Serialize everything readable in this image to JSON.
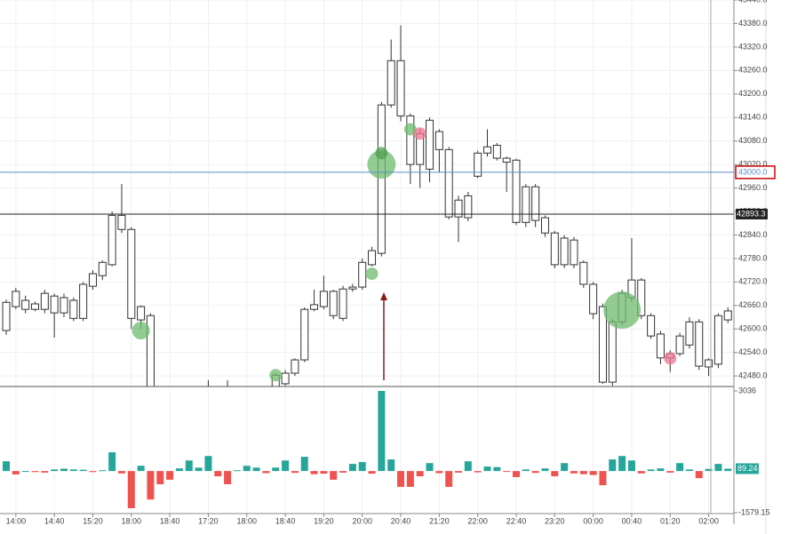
{
  "chart_data": [
    {
      "type": "candlestick",
      "open": [
        42596,
        42657,
        42673,
        42664,
        42650,
        42684,
        42641,
        42673,
        42627,
        42709,
        42736,
        42764,
        42890,
        42854,
        42623,
        42634,
        42419,
        42370,
        42390,
        42380,
        42350,
        42370,
        42400,
        42390,
        42410,
        42395,
        42400,
        42415,
        42442,
        42487,
        42487,
        42521,
        42650,
        42657,
        42696,
        42627,
        42702,
        42707,
        42764,
        42793,
        43172,
        43285,
        43144,
        43020,
        43133,
        43058,
        43058,
        42886,
        42884,
        42990,
        43049,
        43069,
        43036,
        43031,
        42872,
        42963,
        42884,
        42845,
        42764,
        42827,
        42770,
        42714,
        42657,
        42464,
        42618,
        42680,
        42725,
        42634,
        42587,
        42526,
        42537,
        42559,
        42618,
        42503,
        42510,
        42623
      ],
      "high": [
        42675,
        42705,
        42685,
        42670,
        42700,
        42690,
        42690,
        42680,
        42720,
        42750,
        42775,
        42900,
        42970,
        42860,
        42660,
        42640,
        42430,
        42410,
        42420,
        42400,
        42390,
        42469,
        42430,
        42469,
        42430,
        42420,
        42430,
        42440,
        42487,
        42495,
        42525,
        42655,
        42700,
        42736,
        42700,
        42710,
        42715,
        42780,
        42810,
        43180,
        43339,
        43375,
        43150,
        43110,
        43140,
        43110,
        43065,
        42940,
        42950,
        43055,
        43110,
        43075,
        43040,
        43035,
        42970,
        42970,
        42890,
        42850,
        42840,
        42835,
        42775,
        42720,
        42665,
        42625,
        42700,
        42832,
        42730,
        42640,
        42595,
        42545,
        42590,
        42630,
        42625,
        42525,
        42640,
        42655
      ],
      "low": [
        42585,
        42650,
        42640,
        42645,
        42640,
        42578,
        42630,
        42620,
        42620,
        42700,
        42725,
        42760,
        42845,
        42600,
        42600,
        42400,
        42350,
        42340,
        42360,
        42330,
        42320,
        42350,
        42370,
        42360,
        42380,
        42370,
        42380,
        42400,
        42435,
        42455,
        42480,
        42515,
        42645,
        42650,
        42625,
        42620,
        42695,
        42700,
        42760,
        42785,
        43165,
        43130,
        42970,
        42960,
        42975,
        43000,
        42880,
        42822,
        42875,
        42985,
        43040,
        43030,
        42950,
        42865,
        42860,
        42860,
        42835,
        42755,
        42755,
        42755,
        42705,
        42625,
        42460,
        42455,
        42610,
        42670,
        42625,
        42575,
        42510,
        42490,
        42530,
        42550,
        42495,
        42480,
        42500,
        42615
      ],
      "close": [
        42668,
        42696,
        42650,
        42650,
        42691,
        42641,
        42680,
        42627,
        42714,
        42741,
        42770,
        42890,
        42854,
        42627,
        42657,
        42419,
        42370,
        42390,
        42380,
        42350,
        42370,
        42400,
        42390,
        42410,
        42395,
        42400,
        42415,
        42442,
        42482,
        42460,
        42521,
        42650,
        42662,
        42696,
        42634,
        42702,
        42707,
        42770,
        42800,
        43172,
        43285,
        43144,
        43020,
        43099,
        43008,
        43104,
        42886,
        42929,
        42940,
        43049,
        43065,
        43036,
        43026,
        42872,
        42963,
        42877,
        42845,
        42764,
        42832,
        42764,
        42714,
        42639,
        42464,
        42618,
        42691,
        42725,
        42634,
        42582,
        42526,
        42537,
        42582,
        42618,
        42505,
        42521,
        42634,
        42646
      ],
      "color": "#ffffff",
      "edge_color": "#333333",
      "ylim": [
        42453,
        43440
      ],
      "yticks": [
        {
          "value": 42480,
          "label": "42480.0"
        },
        {
          "value": 42540,
          "label": "42540.0"
        },
        {
          "value": 42600,
          "label": "42600.0"
        },
        {
          "value": 42660,
          "label": "42660.0"
        },
        {
          "value": 42720,
          "label": "42720.0"
        },
        {
          "value": 42780,
          "label": "42780.0"
        },
        {
          "value": 42840,
          "label": "42840.0"
        },
        {
          "value": 42900,
          "label": "42900.0"
        },
        {
          "value": 42960,
          "label": "42960.0"
        },
        {
          "value": 43020,
          "label": "43020.0"
        },
        {
          "value": 43080,
          "label": "43080.0"
        },
        {
          "value": 43140,
          "label": "43140.0"
        },
        {
          "value": 43200,
          "label": "43200.0"
        },
        {
          "value": 43260,
          "label": "43260.0"
        },
        {
          "value": 43320,
          "label": "43320.0"
        },
        {
          "value": 43380,
          "label": "43380.0"
        },
        {
          "value": 43440,
          "label": "43440.0"
        }
      ],
      "grid": true,
      "bubbles": [
        {
          "index": 14,
          "price": 42596,
          "size": 100,
          "color": "#6dbb6d"
        },
        {
          "index": 28,
          "price": 42482,
          "size": 49,
          "color": "#6dbb6d"
        },
        {
          "index": 38,
          "price": 42741,
          "size": 49,
          "color": "#6dbb6d"
        },
        {
          "index": 39,
          "price": 43020,
          "size": 256,
          "color": "#6dbb6d"
        },
        {
          "index": 39,
          "price": 43049,
          "size": 49,
          "color": "#4f9f4f"
        },
        {
          "index": 42,
          "price": 43110,
          "size": 49,
          "color": "#6dbb6d"
        },
        {
          "index": 43,
          "price": 43099,
          "size": 49,
          "color": "#ee7390"
        },
        {
          "index": 64,
          "price": 42648,
          "size": 441,
          "color": "#6dbb6d"
        },
        {
          "index": 69,
          "price": 42525,
          "size": 49,
          "color": "#ee7390"
        }
      ],
      "hlines": [
        {
          "value": 43000,
          "label": "43000.0",
          "color": "#5b8fc7"
        },
        {
          "value": 42893.3,
          "label": "42893.3",
          "color": "#222222"
        }
      ]
    },
    {
      "type": "bar",
      "values": [
        370,
        -130,
        0,
        -40,
        -60,
        60,
        90,
        60,
        50,
        -40,
        30,
        710,
        -90,
        -1410,
        200,
        -1080,
        -500,
        -330,
        100,
        400,
        130,
        570,
        -200,
        -500,
        30,
        200,
        130,
        -80,
        130,
        400,
        -70,
        540,
        -120,
        -100,
        -330,
        -60,
        270,
        340,
        -100,
        3036,
        440,
        -600,
        -600,
        -200,
        300,
        -80,
        -600,
        -60,
        370,
        -50,
        170,
        150,
        -30,
        -230,
        60,
        -70,
        100,
        -200,
        300,
        -90,
        -120,
        -150,
        -540,
        440,
        570,
        400,
        -90,
        60,
        100,
        -60,
        300,
        60,
        -270,
        80,
        270,
        89.24
      ],
      "colors": {
        "positive": "#26a69a",
        "negative": "#ef5350"
      },
      "ylim": [
        -1579.15,
        3036
      ],
      "yticks": [
        3036,
        -1579.15
      ],
      "x_labels": [
        "14:00",
        "14:40",
        "15:20",
        "18:00",
        "18:40",
        "17:20",
        "18:00",
        "18:40",
        "19:20",
        "20:00",
        "20:40",
        "21:20",
        "22:00",
        "22:40",
        "23:20",
        "00:00",
        "00:40",
        "01:20",
        "02:00"
      ]
    }
  ]
}
